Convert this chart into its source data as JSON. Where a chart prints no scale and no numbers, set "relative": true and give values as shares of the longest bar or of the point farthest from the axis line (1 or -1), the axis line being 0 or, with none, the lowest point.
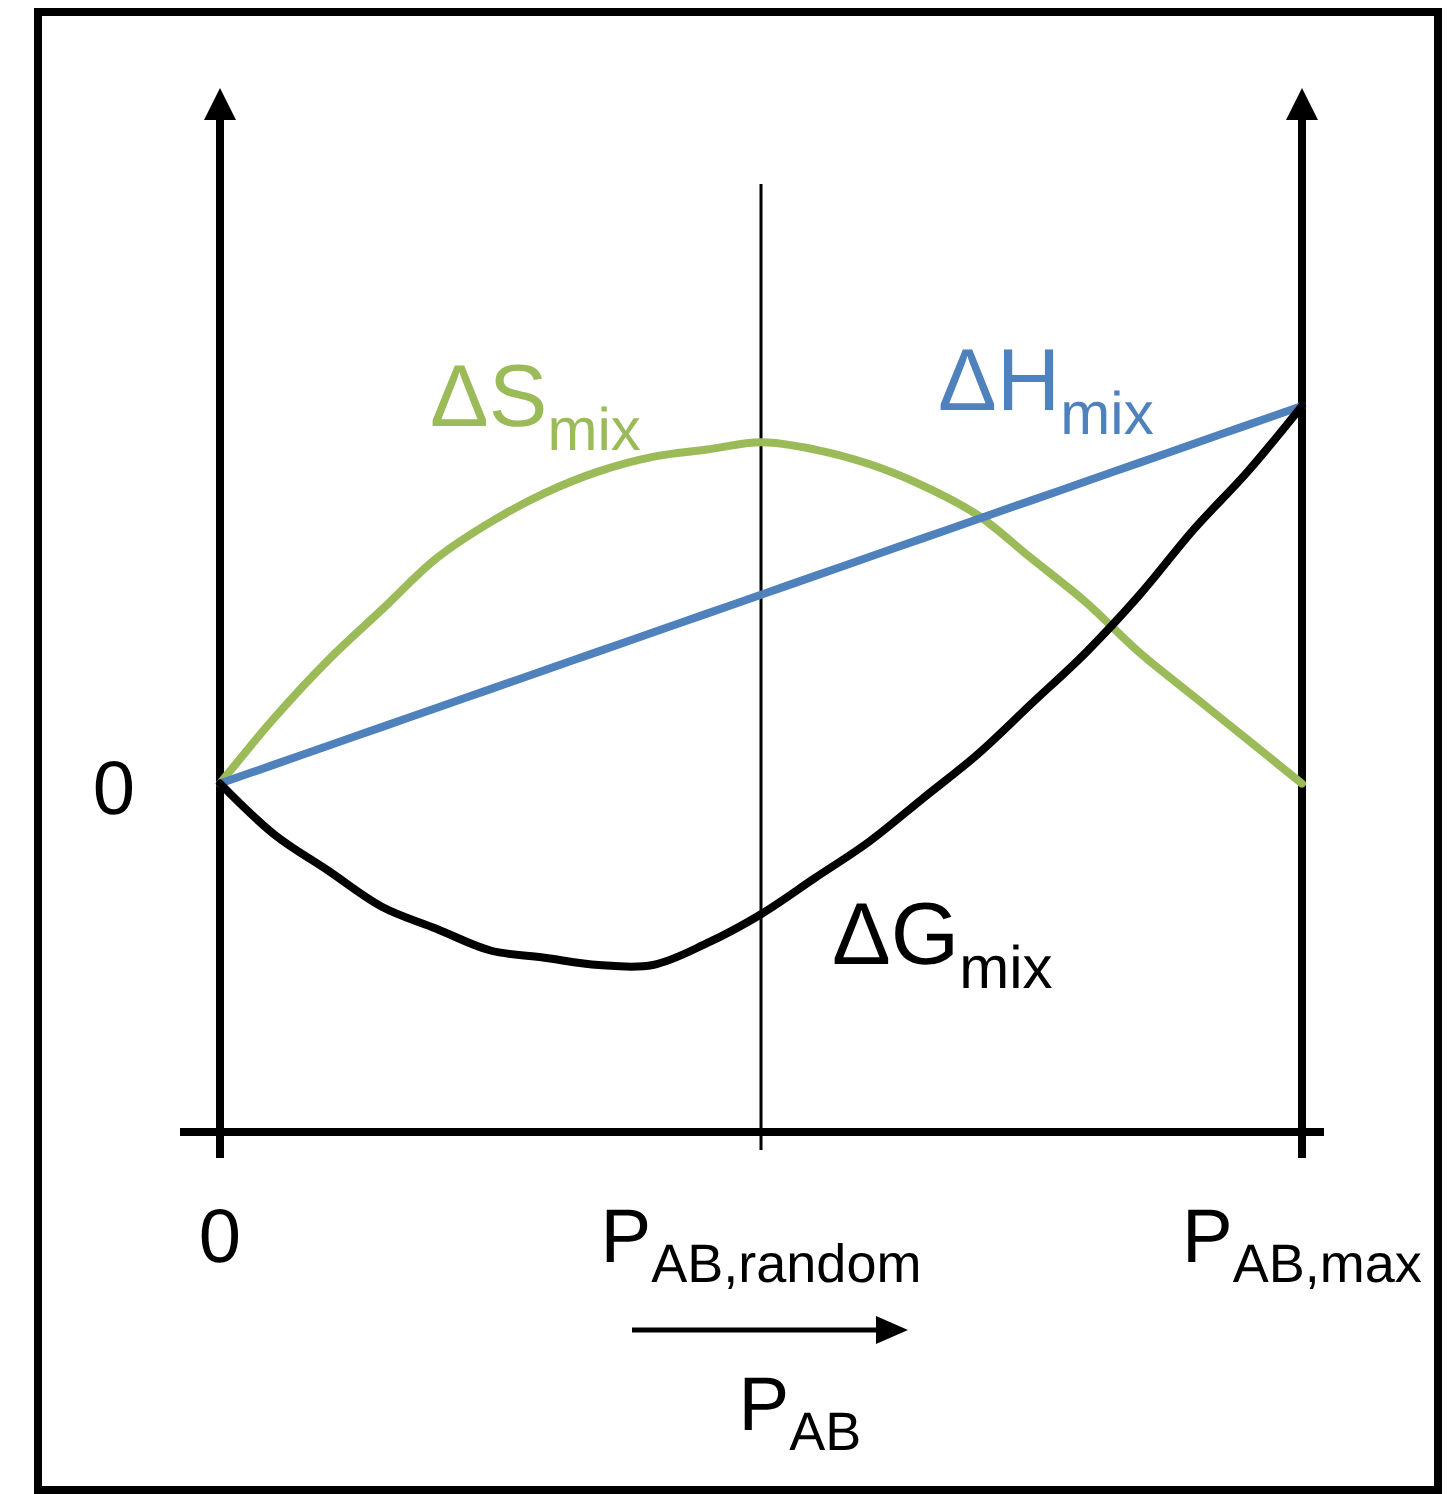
{
  "chart_data": {
    "type": "line",
    "relative": true,
    "categories": [
      "0",
      null,
      null,
      null,
      null,
      null,
      null,
      null,
      null,
      null,
      "P$_{AB,random}$",
      null,
      null,
      null,
      null,
      null,
      null,
      null,
      null,
      null,
      "P$_{AB,max}$"
    ],
    "xlabel": "P$_{AB}$",
    "annotations": [
      "0"
    ],
    "series": [
      {
        "name": "ΔS$_{mix}$",
        "color": "#9bbb59",
        "values": [
          0.48,
          0.57,
          0.65,
          0.72,
          0.79,
          0.84,
          0.88,
          0.91,
          0.93,
          0.94,
          0.95,
          0.94,
          0.92,
          0.89,
          0.85,
          0.79,
          0.73,
          0.66,
          0.6,
          0.54,
          0.48
        ]
      },
      {
        "name": "ΔH$_{mix}$",
        "color": "#4f81bd",
        "values": [
          0.48,
          0.506,
          0.532,
          0.558,
          0.584,
          0.61,
          0.636,
          0.662,
          0.688,
          0.714,
          0.74,
          0.766,
          0.792,
          0.818,
          0.844,
          0.87,
          0.896,
          0.922,
          0.948,
          0.974,
          1.0
        ]
      },
      {
        "name": "ΔG$_{mix}$",
        "color": "#000000",
        "values": [
          0.48,
          0.41,
          0.36,
          0.31,
          0.28,
          0.25,
          0.24,
          0.23,
          0.23,
          0.26,
          0.3,
          0.35,
          0.4,
          0.46,
          0.52,
          0.59,
          0.66,
          0.74,
          0.83,
          0.91,
          1.0
        ]
      }
    ],
    "ref_lines": [
      {
        "axis": "x",
        "value": "P$_{AB,random}$"
      }
    ]
  }
}
